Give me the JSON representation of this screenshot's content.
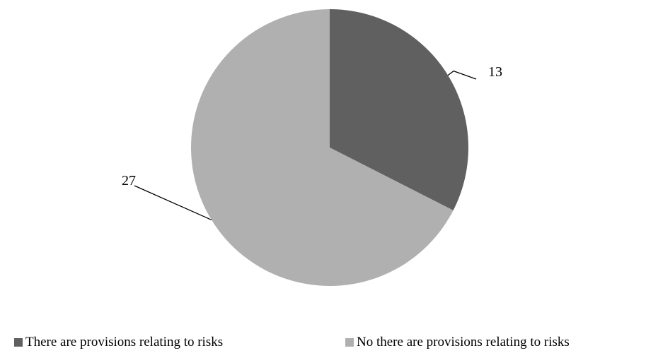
{
  "chart_data": {
    "type": "pie",
    "title": "",
    "categories": [
      "There are provisions relating to risks",
      "No there are provisions relating to risks"
    ],
    "values": [
      13,
      27
    ],
    "colors": [
      "#606060",
      "#b0b0b0"
    ],
    "data_labels": [
      "13",
      "27"
    ],
    "legend_position": "bottom",
    "start_angle_deg": 0,
    "direction": "clockwise"
  }
}
